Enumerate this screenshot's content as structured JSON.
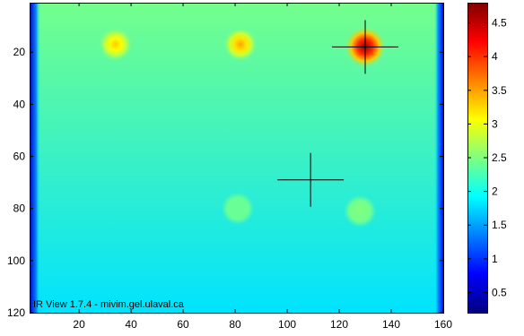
{
  "chart_data": {
    "type": "heatmap",
    "title": "",
    "xlabel": "",
    "ylabel": "",
    "xlim": [
      1,
      160
    ],
    "ylim": [
      120,
      1
    ],
    "x_ticks": [
      20,
      40,
      60,
      80,
      100,
      120,
      140,
      160
    ],
    "y_ticks": [
      20,
      40,
      60,
      80,
      100,
      120
    ],
    "colormap": "jet",
    "colorbar": {
      "range": [
        0.2,
        4.8
      ],
      "ticks": [
        0.5,
        1,
        1.5,
        2,
        2.5,
        3,
        3.5,
        4,
        4.5
      ]
    },
    "background": {
      "value_top": 2.45,
      "value_bottom": 1.8,
      "edge_value_left": 0.5,
      "edge_value_right": 0.8
    },
    "hot_spots": [
      {
        "x": 34,
        "y": 17,
        "peak": 3.3
      },
      {
        "x": 82,
        "y": 17,
        "peak": 3.5
      },
      {
        "x": 130,
        "y": 18,
        "peak": 4.7
      },
      {
        "x": 128,
        "y": 81,
        "peak": 2.5
      },
      {
        "x": 81,
        "y": 80,
        "peak": 2.4
      }
    ],
    "crosshairs": [
      {
        "x": 130,
        "y": 18
      },
      {
        "x": 109,
        "y": 69
      }
    ],
    "watermark": "IR View  1.7.4 - mivim.gel.ulaval.ca"
  }
}
